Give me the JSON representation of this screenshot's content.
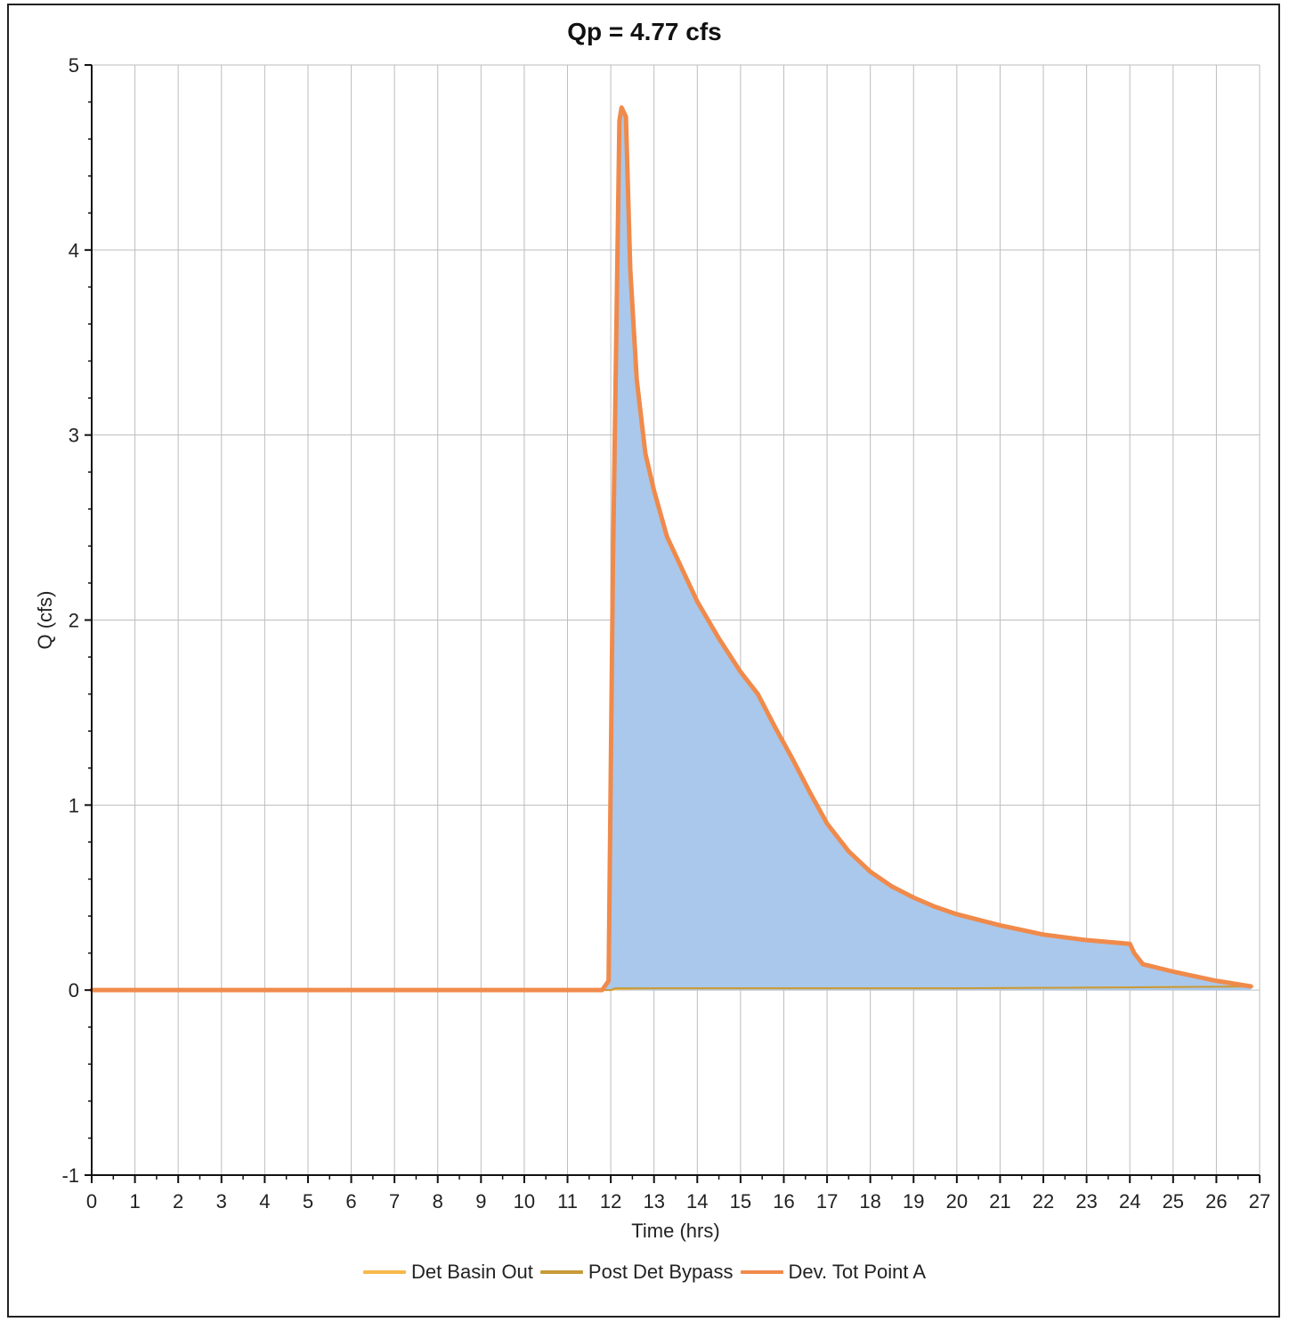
{
  "chart_data": {
    "type": "line",
    "title": "Qp = 4.77 cfs",
    "xlabel": "Time (hrs)",
    "ylabel": "Q (cfs)",
    "xlim": [
      0,
      27
    ],
    "ylim": [
      -1,
      5
    ],
    "xticks": [
      "0",
      "1",
      "2",
      "3",
      "4",
      "5",
      "6",
      "7",
      "8",
      "9",
      "10",
      "11",
      "12",
      "13",
      "14",
      "15",
      "16",
      "17",
      "18",
      "19",
      "20",
      "21",
      "22",
      "23",
      "24",
      "25",
      "26",
      "27"
    ],
    "yticks": [
      "-1",
      "0",
      "1",
      "2",
      "3",
      "4",
      "5"
    ],
    "grid": true,
    "legend_position": "bottom",
    "fill_color": "#a9c8ec",
    "series": [
      {
        "name": "Det Basin Out",
        "color": "#f7b84b",
        "x": [
          0,
          12,
          12.1,
          13,
          16,
          20,
          24,
          26.8
        ],
        "y": [
          0,
          0,
          0.005,
          0.01,
          0.01,
          0.01,
          0.015,
          0.02
        ]
      },
      {
        "name": "Post Det Bypass",
        "color": "#c79a3a",
        "x": [
          0,
          12,
          12.1,
          16,
          20,
          24.2,
          26.8
        ],
        "y": [
          0,
          0,
          0.01,
          0.01,
          0.01,
          0.015,
          0.02
        ]
      },
      {
        "name": "Dev. Tot Point A",
        "color": "#f08a4b",
        "x": [
          0,
          11.8,
          11.95,
          12.05,
          12.2,
          12.25,
          12.35,
          12.45,
          12.6,
          12.8,
          13.0,
          13.3,
          13.7,
          14.0,
          14.5,
          15.0,
          15.4,
          15.8,
          16.2,
          16.6,
          17.0,
          17.5,
          18.0,
          18.5,
          19.0,
          19.5,
          20.0,
          21.0,
          22.0,
          23.0,
          24.0,
          24.1,
          24.3,
          25.0,
          26.0,
          26.8
        ],
        "y": [
          0,
          0,
          0.05,
          2.3,
          4.7,
          4.77,
          4.72,
          3.9,
          3.3,
          2.9,
          2.7,
          2.45,
          2.25,
          2.1,
          1.9,
          1.72,
          1.6,
          1.42,
          1.25,
          1.07,
          0.9,
          0.75,
          0.64,
          0.56,
          0.5,
          0.45,
          0.41,
          0.35,
          0.3,
          0.27,
          0.25,
          0.2,
          0.14,
          0.1,
          0.05,
          0.02
        ]
      }
    ]
  }
}
